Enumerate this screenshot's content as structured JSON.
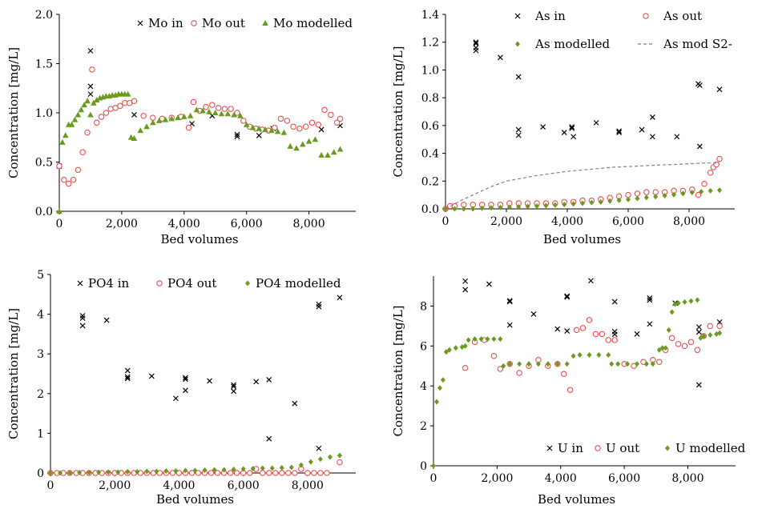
{
  "chart_data": [
    {
      "type": "scatter",
      "xlabel": "Bed volumes",
      "ylabel": "Concentration [mg/L]",
      "xlim": [
        0,
        9500
      ],
      "ylim": [
        0,
        2.0
      ],
      "xticks": [
        "0",
        "2,000",
        "4,000",
        "6,000",
        "8,000"
      ],
      "yticks": [
        "0.0",
        "0.5",
        "1.0",
        "1.5",
        "2.0"
      ],
      "legend": "top-right",
      "grid": false,
      "series": [
        {
          "name": "Mo in",
          "marker": "x",
          "color": "#000000",
          "x": [
            0,
            1000,
            1000,
            1000,
            2400,
            4250,
            4900,
            5700,
            5700,
            6400,
            6850,
            8400,
            9000
          ],
          "y": [
            0.46,
            1.63,
            1.27,
            1.19,
            0.98,
            0.89,
            0.97,
            0.78,
            0.76,
            0.77,
            0.84,
            0.83,
            0.87
          ]
        },
        {
          "name": "Mo out",
          "marker": "o",
          "color": "#e8504f",
          "x": [
            0,
            150,
            300,
            450,
            600,
            750,
            900,
            1050,
            1200,
            1350,
            1500,
            1650,
            1800,
            1950,
            2100,
            2250,
            2400,
            2700,
            3000,
            3300,
            3600,
            3900,
            4150,
            4300,
            4500,
            4700,
            4900,
            5100,
            5300,
            5500,
            5700,
            5900,
            6100,
            6300,
            6500,
            6700,
            6900,
            7100,
            7300,
            7500,
            7700,
            7900,
            8100,
            8300,
            8500,
            8700,
            8900,
            9000
          ],
          "y": [
            0.46,
            0.32,
            0.28,
            0.32,
            0.42,
            0.6,
            0.8,
            1.44,
            0.9,
            0.96,
            1.0,
            1.04,
            1.05,
            1.07,
            1.1,
            1.1,
            1.12,
            0.97,
            0.95,
            0.94,
            0.95,
            0.96,
            0.85,
            1.11,
            1.02,
            1.06,
            1.08,
            1.05,
            1.04,
            1.04,
            1.0,
            0.92,
            0.86,
            0.84,
            0.83,
            0.82,
            0.85,
            0.94,
            0.92,
            0.86,
            0.84,
            0.86,
            0.9,
            0.88,
            1.03,
            0.98,
            0.9,
            0.94
          ]
        },
        {
          "name": "Mo modelled",
          "marker": "triangle",
          "color": "#6a9a1f",
          "x": [
            0,
            100,
            200,
            300,
            400,
            500,
            600,
            700,
            800,
            900,
            1000,
            1100,
            1200,
            1300,
            1400,
            1500,
            1600,
            1700,
            1800,
            1900,
            2000,
            2100,
            2200,
            2300,
            2400,
            2600,
            2800,
            3000,
            3200,
            3400,
            3600,
            3800,
            4000,
            4200,
            4400,
            4600,
            4800,
            5000,
            5200,
            5400,
            5600,
            5800,
            6000,
            6200,
            6400,
            6600,
            6800,
            7000,
            7200,
            7400,
            7600,
            7800,
            8000,
            8200,
            8400,
            8600,
            8800,
            9000
          ],
          "y": [
            0.0,
            0.7,
            0.77,
            0.88,
            0.88,
            0.93,
            0.98,
            1.03,
            1.08,
            1.12,
            0.98,
            1.1,
            1.13,
            1.15,
            1.16,
            1.17,
            1.17,
            1.18,
            1.18,
            1.19,
            1.19,
            1.19,
            1.19,
            0.75,
            0.74,
            0.82,
            0.86,
            0.9,
            0.92,
            0.93,
            0.94,
            0.95,
            0.96,
            0.97,
            1.03,
            1.02,
            1.01,
            1.0,
            0.99,
            0.99,
            0.98,
            0.97,
            0.88,
            0.85,
            0.84,
            0.83,
            0.82,
            0.81,
            0.8,
            0.66,
            0.64,
            0.68,
            0.71,
            0.73,
            0.57,
            0.57,
            0.6,
            0.63
          ]
        }
      ]
    },
    {
      "type": "scatter",
      "xlabel": "Bed volumes",
      "ylabel": "Concentration [mg/L]",
      "xlim": [
        0,
        9500
      ],
      "ylim": [
        0,
        1.4
      ],
      "xticks": [
        "0",
        "2,000",
        "4,000",
        "6,000",
        "8,000"
      ],
      "yticks": [
        "0.0",
        "0.2",
        "0.4",
        "0.6",
        "0.8",
        "1.0",
        "1.2",
        "1.4"
      ],
      "legend": "top-right",
      "grid": false,
      "series": [
        {
          "name": "As in",
          "marker": "x",
          "color": "#000000",
          "x": [
            1000,
            1000,
            1000,
            1000,
            1800,
            2400,
            2400,
            2400,
            3200,
            3900,
            4150,
            4150,
            4200,
            4950,
            5700,
            5700,
            6450,
            6800,
            6800,
            7600,
            8300,
            8350,
            8350,
            9000
          ],
          "y": [
            1.19,
            1.2,
            1.16,
            1.14,
            1.09,
            0.95,
            0.57,
            0.53,
            0.59,
            0.55,
            0.59,
            0.58,
            0.52,
            0.62,
            0.56,
            0.55,
            0.57,
            0.66,
            0.52,
            0.52,
            0.9,
            0.89,
            0.45,
            0.86
          ]
        },
        {
          "name": "As out",
          "marker": "o",
          "color": "#e8504f",
          "x": [
            0,
            150,
            300,
            600,
            900,
            1200,
            1500,
            1800,
            2100,
            2400,
            2700,
            3000,
            3300,
            3600,
            3900,
            4200,
            4500,
            4800,
            5100,
            5400,
            5700,
            6000,
            6300,
            6600,
            6900,
            7200,
            7500,
            7800,
            8100,
            8300,
            8500,
            8700,
            8800,
            8900,
            9000
          ],
          "y": [
            0.0,
            0.02,
            0.02,
            0.03,
            0.03,
            0.03,
            0.03,
            0.03,
            0.04,
            0.04,
            0.04,
            0.04,
            0.04,
            0.04,
            0.05,
            0.05,
            0.06,
            0.06,
            0.07,
            0.08,
            0.09,
            0.1,
            0.11,
            0.12,
            0.12,
            0.12,
            0.13,
            0.13,
            0.14,
            0.1,
            0.18,
            0.26,
            0.3,
            0.32,
            0.36
          ]
        },
        {
          "name": "As modelled",
          "marker": "diamond",
          "color": "#6a9a1f",
          "x": [
            0,
            300,
            600,
            900,
            1200,
            1500,
            1800,
            2100,
            2400,
            2700,
            3000,
            3300,
            3600,
            3900,
            4200,
            4500,
            4800,
            5100,
            5400,
            5700,
            6000,
            6300,
            6600,
            6900,
            7200,
            7500,
            7800,
            8100,
            8400,
            8700,
            9000
          ],
          "y": [
            0.0,
            0.0,
            0.0,
            0.0,
            0.005,
            0.008,
            0.01,
            0.012,
            0.015,
            0.018,
            0.02,
            0.024,
            0.028,
            0.032,
            0.036,
            0.04,
            0.046,
            0.05,
            0.056,
            0.062,
            0.068,
            0.075,
            0.082,
            0.088,
            0.095,
            0.102,
            0.11,
            0.118,
            0.124,
            0.13,
            0.135
          ]
        },
        {
          "name": "As mod S2-",
          "marker": "dashed-line",
          "color": "#808080",
          "x": [
            0,
            500,
            1000,
            1500,
            2000,
            2500,
            3000,
            3500,
            4000,
            4500,
            5000,
            5500,
            6000,
            6500,
            7000,
            7500,
            8000,
            8500,
            9000
          ],
          "y": [
            0.0,
            0.06,
            0.11,
            0.16,
            0.2,
            0.22,
            0.24,
            0.255,
            0.27,
            0.28,
            0.29,
            0.3,
            0.305,
            0.31,
            0.315,
            0.32,
            0.325,
            0.33,
            0.33
          ]
        }
      ]
    },
    {
      "type": "scatter",
      "xlabel": "Bed volumes",
      "ylabel": "Concentration [mg/L]",
      "xlim": [
        0,
        9500
      ],
      "ylim": [
        0,
        5
      ],
      "xticks": [
        "0",
        "2,000",
        "4,000",
        "6,000",
        "8,000"
      ],
      "yticks": [
        "0",
        "1",
        "2",
        "3",
        "4",
        "5"
      ],
      "legend": "top",
      "grid": false,
      "series": [
        {
          "name": "PO4 in",
          "marker": "x",
          "color": "#000000",
          "x": [
            1000,
            1000,
            1000,
            1750,
            2400,
            2400,
            2400,
            3150,
            3900,
            4200,
            4200,
            4200,
            4950,
            5700,
            5700,
            5700,
            6400,
            6800,
            6800,
            7600,
            8350,
            8350,
            8350,
            9000
          ],
          "y": [
            3.96,
            3.9,
            3.71,
            3.85,
            2.58,
            2.42,
            2.38,
            2.44,
            1.88,
            2.4,
            2.36,
            2.08,
            2.32,
            2.22,
            2.18,
            2.06,
            2.3,
            2.35,
            0.86,
            1.75,
            4.25,
            4.19,
            0.62,
            4.42
          ]
        },
        {
          "name": "PO4 out",
          "marker": "o",
          "color": "#e8504f",
          "x": [
            0,
            200,
            400,
            600,
            800,
            1000,
            1200,
            1400,
            1600,
            1800,
            2000,
            2200,
            2400,
            2600,
            2800,
            3000,
            3200,
            3400,
            3600,
            3800,
            4000,
            4200,
            4400,
            4600,
            4800,
            5000,
            5200,
            5400,
            5600,
            5800,
            6000,
            6200,
            6400,
            6600,
            6800,
            7000,
            7200,
            7400,
            7600,
            7800,
            8000,
            8200,
            8400,
            8600,
            9000
          ],
          "y": [
            0.0,
            0.0,
            0.0,
            0.0,
            0.0,
            0.0,
            0.0,
            0.0,
            0.0,
            0.0,
            0.0,
            0.0,
            0.0,
            0.0,
            0.0,
            0.0,
            0.0,
            0.0,
            0.0,
            0.0,
            0.0,
            0.0,
            0.0,
            0.0,
            0.0,
            0.0,
            0.0,
            0.0,
            0.0,
            0.0,
            0.0,
            0.0,
            0.1,
            0.0,
            0.0,
            0.0,
            0.0,
            0.0,
            0.0,
            0.1,
            0.0,
            0.0,
            0.0,
            0.0,
            0.27
          ]
        },
        {
          "name": "PO4 modelled",
          "marker": "diamond",
          "color": "#6a9a1f",
          "x": [
            0,
            300,
            600,
            900,
            1200,
            1500,
            1800,
            2100,
            2400,
            2700,
            3000,
            3300,
            3600,
            3900,
            4200,
            4500,
            4800,
            5100,
            5400,
            5700,
            6000,
            6300,
            6600,
            6900,
            7200,
            7500,
            7800,
            8100,
            8400,
            8700,
            9000
          ],
          "y": [
            0.0,
            0.0,
            0.0,
            0.01,
            0.01,
            0.02,
            0.02,
            0.02,
            0.03,
            0.03,
            0.04,
            0.04,
            0.05,
            0.05,
            0.06,
            0.06,
            0.07,
            0.08,
            0.08,
            0.09,
            0.1,
            0.11,
            0.12,
            0.12,
            0.13,
            0.14,
            0.2,
            0.28,
            0.35,
            0.4,
            0.44
          ]
        }
      ]
    },
    {
      "type": "scatter",
      "xlabel": "Bed volumes",
      "ylabel": "Concentration [mg/L]",
      "xlim": [
        0,
        9500
      ],
      "ylim": [
        0,
        9.5
      ],
      "xticks": [
        "0",
        "2,000",
        "4,000",
        "6,000",
        "8,000"
      ],
      "yticks": [
        "0",
        "2",
        "4",
        "6",
        "8"
      ],
      "legend": "bottom-right",
      "grid": false,
      "series": [
        {
          "name": "U in",
          "marker": "x",
          "color": "#000000",
          "x": [
            1000,
            1000,
            1750,
            2400,
            2400,
            2400,
            3150,
            3900,
            4200,
            4200,
            4200,
            4950,
            5700,
            5700,
            5700,
            6400,
            6800,
            6800,
            6800,
            7600,
            8350,
            8350,
            8350,
            9000
          ],
          "y": [
            9.25,
            8.82,
            9.1,
            8.27,
            8.22,
            7.05,
            7.6,
            6.85,
            8.5,
            8.45,
            6.75,
            9.27,
            8.22,
            6.72,
            6.58,
            6.6,
            8.4,
            8.3,
            7.1,
            8.15,
            6.95,
            6.7,
            4.05,
            7.2
          ]
        },
        {
          "name": "U out",
          "marker": "o",
          "color": "#e8504f",
          "x": [
            1000,
            1300,
            1600,
            1900,
            2100,
            2400,
            2700,
            3000,
            3300,
            3600,
            3900,
            4100,
            4300,
            4500,
            4700,
            4900,
            5100,
            5300,
            5500,
            5700,
            6000,
            6300,
            6600,
            6900,
            7100,
            7300,
            7500,
            7700,
            7900,
            8100,
            8300,
            8500,
            8700,
            9000
          ],
          "y": [
            4.9,
            6.2,
            6.3,
            5.5,
            4.85,
            5.1,
            4.65,
            5.0,
            5.3,
            5.0,
            5.1,
            4.6,
            3.8,
            6.8,
            6.9,
            7.3,
            6.6,
            6.6,
            6.3,
            6.3,
            5.1,
            5.0,
            5.2,
            5.3,
            5.2,
            5.8,
            6.4,
            6.1,
            6.0,
            6.2,
            5.8,
            6.5,
            7.0,
            7.0
          ]
        },
        {
          "name": "U modelled",
          "marker": "diamond",
          "color": "#6a9a1f",
          "x": [
            0,
            100,
            200,
            300,
            400,
            500,
            700,
            900,
            1000,
            1100,
            1300,
            1500,
            1700,
            1900,
            2100,
            2200,
            2400,
            2700,
            3000,
            3300,
            3600,
            3900,
            4200,
            4400,
            4600,
            4900,
            5200,
            5500,
            5600,
            5800,
            6100,
            6400,
            6700,
            6900,
            7100,
            7200,
            7300,
            7400,
            7500,
            7600,
            7700,
            7900,
            8100,
            8300,
            8400,
            8500,
            8700,
            8900,
            9000
          ],
          "y": [
            0.0,
            3.2,
            3.9,
            4.3,
            5.7,
            5.8,
            5.9,
            5.95,
            6.0,
            6.3,
            6.35,
            6.35,
            6.35,
            6.35,
            6.35,
            5.0,
            5.1,
            5.1,
            5.1,
            5.1,
            5.1,
            5.1,
            5.1,
            5.5,
            5.55,
            5.55,
            5.55,
            5.55,
            5.1,
            5.1,
            5.1,
            5.1,
            5.1,
            5.1,
            5.8,
            5.9,
            5.9,
            6.8,
            7.7,
            8.1,
            8.15,
            8.2,
            8.25,
            8.3,
            6.4,
            6.5,
            6.55,
            6.6,
            6.65
          ]
        }
      ]
    }
  ]
}
